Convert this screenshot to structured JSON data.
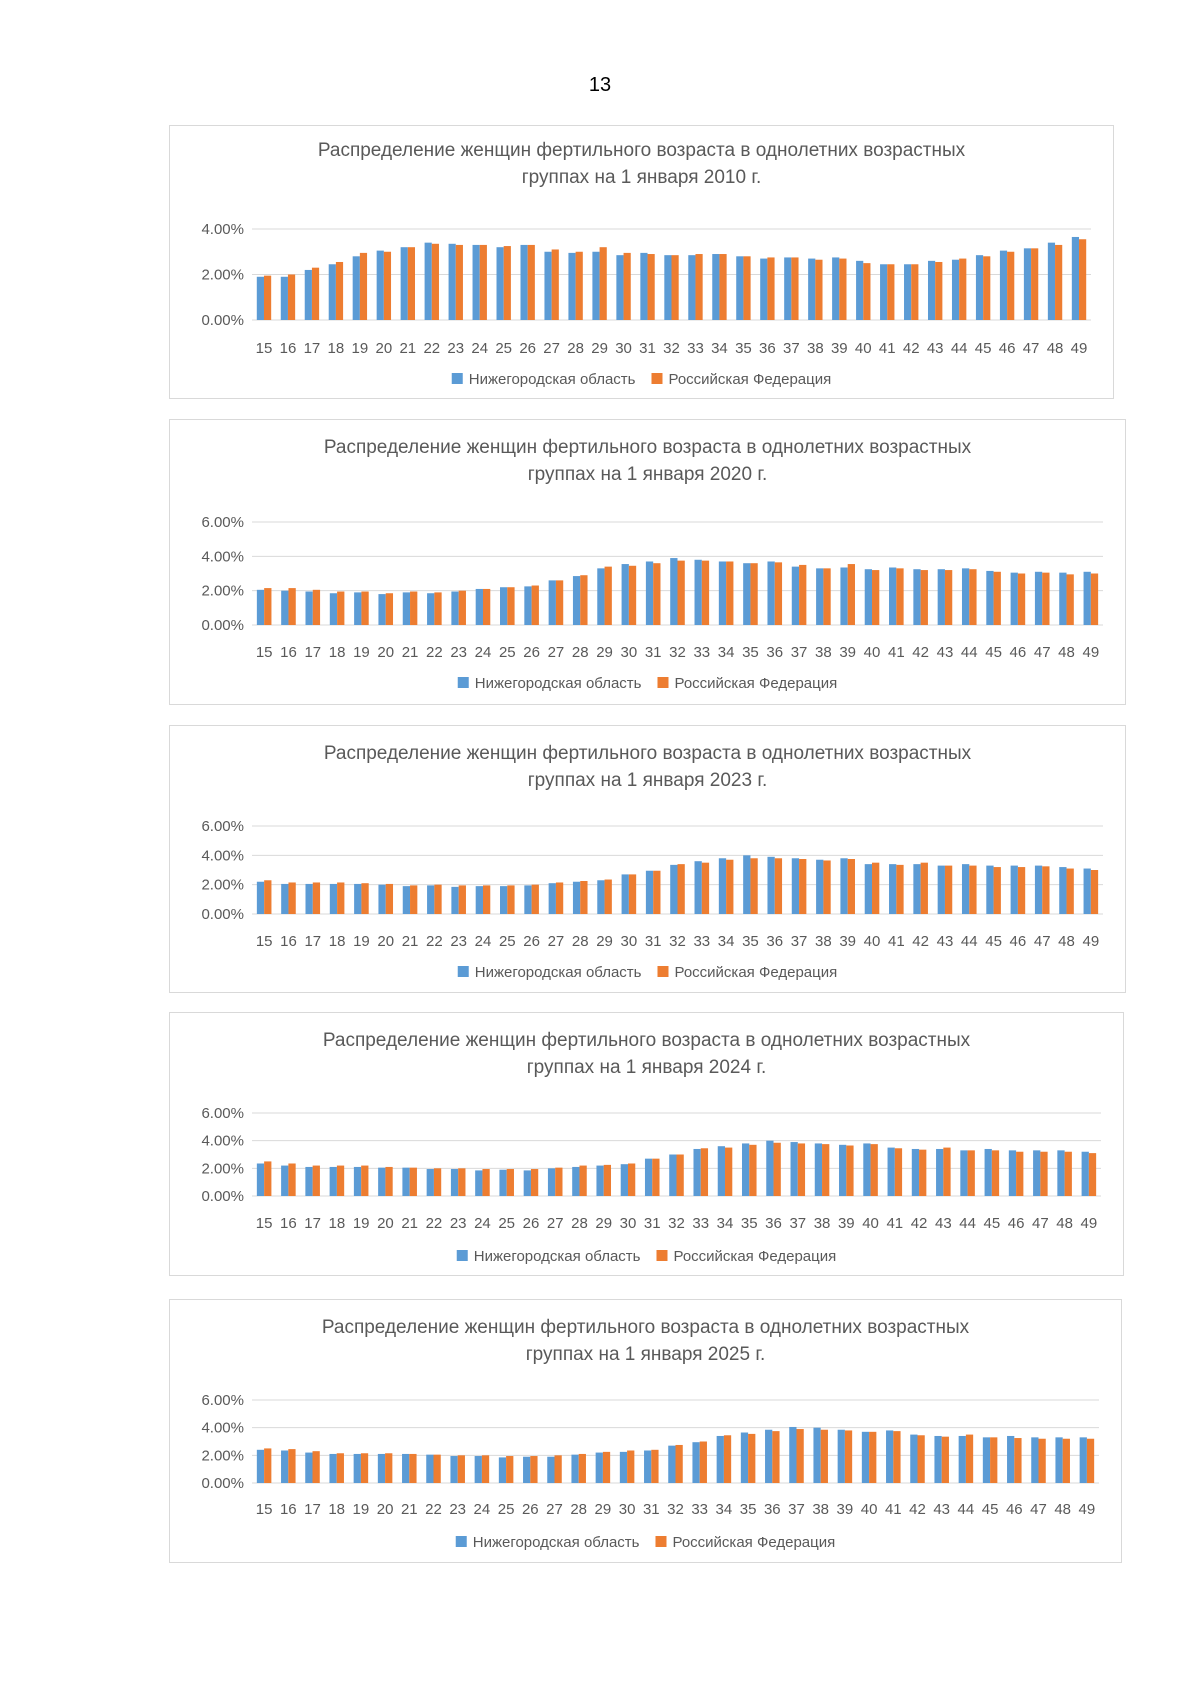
{
  "page": {
    "number": "13"
  },
  "colors": {
    "series_a": "#5b9bd5",
    "series_b": "#ed7d31",
    "grid": "#d9d9d9",
    "text": "#595959"
  },
  "legend": {
    "series_a": "Нижегородская область",
    "series_b": "Российская Федерация"
  },
  "chart_data": [
    {
      "type": "bar",
      "title_line1": "Распределение женщин фертильного возраста в однолетних возрастных",
      "title_line2": "группах на 1 января 2010 г.",
      "categories": [
        "15",
        "16",
        "17",
        "18",
        "19",
        "20",
        "21",
        "22",
        "23",
        "24",
        "25",
        "26",
        "27",
        "28",
        "29",
        "30",
        "31",
        "32",
        "33",
        "34",
        "35",
        "36",
        "37",
        "38",
        "39",
        "40",
        "41",
        "42",
        "43",
        "44",
        "45",
        "46",
        "47",
        "48",
        "49"
      ],
      "y_ticks": [
        "0.00%",
        "2.00%",
        "4.00%"
      ],
      "ylim": [
        0,
        4
      ],
      "series": [
        {
          "name": "Нижегородская область",
          "values": [
            1.9,
            1.9,
            2.2,
            2.45,
            2.8,
            3.05,
            3.2,
            3.4,
            3.35,
            3.3,
            3.2,
            3.3,
            3.0,
            2.95,
            3.0,
            2.85,
            2.95,
            2.85,
            2.85,
            2.9,
            2.8,
            2.7,
            2.75,
            2.7,
            2.75,
            2.6,
            2.45,
            2.45,
            2.6,
            2.65,
            2.85,
            3.05,
            3.15,
            3.4,
            3.65
          ]
        },
        {
          "name": "Российская Федерация",
          "values": [
            1.95,
            2.0,
            2.3,
            2.55,
            2.95,
            3.0,
            3.2,
            3.35,
            3.3,
            3.3,
            3.25,
            3.3,
            3.1,
            3.0,
            3.2,
            2.95,
            2.9,
            2.85,
            2.9,
            2.9,
            2.8,
            2.75,
            2.75,
            2.65,
            2.7,
            2.5,
            2.45,
            2.45,
            2.55,
            2.7,
            2.8,
            3.0,
            3.15,
            3.3,
            3.55
          ]
        }
      ]
    },
    {
      "type": "bar",
      "title_line1": "Распределение женщин фертильного возраста в однолетних возрастных",
      "title_line2": "группах на 1 января 2020 г.",
      "categories": [
        "15",
        "16",
        "17",
        "18",
        "19",
        "20",
        "21",
        "22",
        "23",
        "24",
        "25",
        "26",
        "27",
        "28",
        "29",
        "30",
        "31",
        "32",
        "33",
        "34",
        "35",
        "36",
        "37",
        "38",
        "39",
        "40",
        "41",
        "42",
        "43",
        "44",
        "45",
        "46",
        "47",
        "48",
        "49"
      ],
      "y_ticks": [
        "0.00%",
        "2.00%",
        "4.00%",
        "6.00%"
      ],
      "ylim": [
        0,
        6
      ],
      "series": [
        {
          "name": "Нижегородская область",
          "values": [
            2.05,
            2.0,
            1.95,
            1.85,
            1.9,
            1.8,
            1.9,
            1.85,
            1.95,
            2.1,
            2.2,
            2.25,
            2.6,
            2.85,
            3.3,
            3.55,
            3.7,
            3.9,
            3.8,
            3.7,
            3.6,
            3.7,
            3.4,
            3.3,
            3.35,
            3.25,
            3.35,
            3.25,
            3.25,
            3.3,
            3.15,
            3.05,
            3.1,
            3.05,
            3.1
          ]
        },
        {
          "name": "Российская Федерация",
          "values": [
            2.15,
            2.15,
            2.05,
            1.95,
            1.95,
            1.85,
            1.95,
            1.9,
            2.0,
            2.1,
            2.2,
            2.3,
            2.6,
            2.9,
            3.4,
            3.45,
            3.6,
            3.75,
            3.75,
            3.7,
            3.6,
            3.65,
            3.5,
            3.3,
            3.55,
            3.2,
            3.3,
            3.2,
            3.2,
            3.25,
            3.1,
            3.0,
            3.05,
            2.95,
            3.0
          ]
        }
      ]
    },
    {
      "type": "bar",
      "title_line1": "Распределение женщин фертильного возраста в однолетних возрастных",
      "title_line2": "группах на 1 января 2023 г.",
      "categories": [
        "15",
        "16",
        "17",
        "18",
        "19",
        "20",
        "21",
        "22",
        "23",
        "24",
        "25",
        "26",
        "27",
        "28",
        "29",
        "30",
        "31",
        "32",
        "33",
        "34",
        "35",
        "36",
        "37",
        "38",
        "39",
        "40",
        "41",
        "42",
        "43",
        "44",
        "45",
        "46",
        "47",
        "48",
        "49"
      ],
      "y_ticks": [
        "0.00%",
        "2.00%",
        "4.00%",
        "6.00%"
      ],
      "ylim": [
        0,
        6
      ],
      "series": [
        {
          "name": "Нижегородская область",
          "values": [
            2.2,
            2.05,
            2.05,
            2.05,
            2.05,
            2.0,
            1.9,
            1.95,
            1.85,
            1.9,
            1.9,
            1.95,
            2.1,
            2.2,
            2.3,
            2.7,
            2.95,
            3.35,
            3.6,
            3.8,
            4.0,
            3.9,
            3.8,
            3.7,
            3.8,
            3.4,
            3.4,
            3.4,
            3.3,
            3.4,
            3.3,
            3.3,
            3.3,
            3.2,
            3.1
          ]
        },
        {
          "name": "Российская Федерация",
          "values": [
            2.3,
            2.15,
            2.15,
            2.15,
            2.1,
            2.05,
            1.95,
            2.0,
            1.95,
            1.95,
            1.95,
            2.0,
            2.15,
            2.25,
            2.35,
            2.7,
            2.95,
            3.4,
            3.5,
            3.7,
            3.8,
            3.8,
            3.75,
            3.65,
            3.75,
            3.5,
            3.35,
            3.5,
            3.3,
            3.3,
            3.2,
            3.2,
            3.25,
            3.1,
            3.0
          ]
        }
      ]
    },
    {
      "type": "bar",
      "title_line1": "Распределение женщин фертильного возраста в однолетних возрастных",
      "title_line2": "группах на 1 января 2024 г.",
      "categories": [
        "15",
        "16",
        "17",
        "18",
        "19",
        "20",
        "21",
        "22",
        "23",
        "24",
        "25",
        "26",
        "27",
        "28",
        "29",
        "30",
        "31",
        "32",
        "33",
        "34",
        "35",
        "36",
        "37",
        "38",
        "39",
        "40",
        "41",
        "42",
        "43",
        "44",
        "45",
        "46",
        "47",
        "48",
        "49"
      ],
      "y_ticks": [
        "0.00%",
        "2.00%",
        "4.00%",
        "6.00%"
      ],
      "ylim": [
        0,
        6
      ],
      "series": [
        {
          "name": "Нижегородская область",
          "values": [
            2.35,
            2.2,
            2.1,
            2.1,
            2.1,
            2.05,
            2.05,
            1.95,
            1.95,
            1.85,
            1.9,
            1.85,
            2.0,
            2.1,
            2.2,
            2.3,
            2.7,
            3.0,
            3.4,
            3.6,
            3.8,
            4.0,
            3.9,
            3.8,
            3.7,
            3.8,
            3.5,
            3.4,
            3.4,
            3.3,
            3.4,
            3.3,
            3.3,
            3.3,
            3.2
          ]
        },
        {
          "name": "Российская Федерация",
          "values": [
            2.5,
            2.35,
            2.2,
            2.2,
            2.2,
            2.1,
            2.05,
            2.0,
            2.0,
            1.95,
            1.95,
            1.95,
            2.05,
            2.2,
            2.25,
            2.35,
            2.7,
            3.0,
            3.45,
            3.5,
            3.7,
            3.85,
            3.8,
            3.75,
            3.65,
            3.75,
            3.45,
            3.35,
            3.5,
            3.3,
            3.3,
            3.2,
            3.2,
            3.2,
            3.1
          ]
        }
      ]
    },
    {
      "type": "bar",
      "title_line1": "Распределение женщин фертильного возраста в однолетних возрастных",
      "title_line2": "группах на 1 января 2025 г.",
      "categories": [
        "15",
        "16",
        "17",
        "18",
        "19",
        "20",
        "21",
        "22",
        "23",
        "24",
        "25",
        "26",
        "27",
        "28",
        "29",
        "30",
        "31",
        "32",
        "33",
        "34",
        "35",
        "36",
        "37",
        "38",
        "39",
        "40",
        "41",
        "42",
        "43",
        "44",
        "45",
        "46",
        "47",
        "48",
        "49"
      ],
      "y_ticks": [
        "0.00%",
        "2.00%",
        "4.00%",
        "6.00%"
      ],
      "ylim": [
        0,
        6
      ],
      "series": [
        {
          "name": "Нижегородская область",
          "values": [
            2.4,
            2.35,
            2.2,
            2.1,
            2.1,
            2.1,
            2.1,
            2.05,
            1.95,
            1.95,
            1.85,
            1.9,
            1.9,
            2.05,
            2.2,
            2.25,
            2.35,
            2.7,
            2.95,
            3.4,
            3.65,
            3.85,
            4.05,
            4.0,
            3.85,
            3.7,
            3.8,
            3.5,
            3.4,
            3.4,
            3.3,
            3.4,
            3.3,
            3.3,
            3.3
          ]
        },
        {
          "name": "Российская Федерация",
          "values": [
            2.5,
            2.45,
            2.3,
            2.15,
            2.15,
            2.15,
            2.1,
            2.05,
            2.0,
            2.0,
            1.95,
            1.95,
            2.0,
            2.1,
            2.25,
            2.35,
            2.4,
            2.75,
            3.0,
            3.45,
            3.55,
            3.75,
            3.9,
            3.85,
            3.8,
            3.7,
            3.75,
            3.45,
            3.35,
            3.5,
            3.3,
            3.25,
            3.2,
            3.2,
            3.2
          ]
        }
      ]
    }
  ]
}
